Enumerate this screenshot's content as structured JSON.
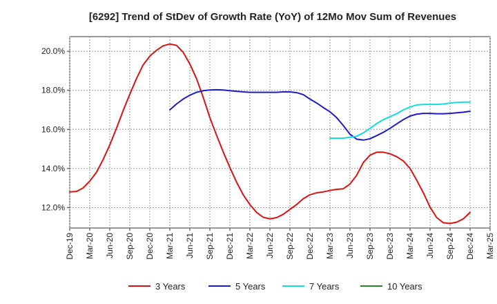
{
  "chart_data": {
    "type": "line",
    "title": "[6292]  Trend of StDev of Growth Rate (YoY) of 12Mo Mov Sum of Revenues",
    "xlabel": "",
    "ylabel": "",
    "x_ticks": [
      "Dec-19",
      "Mar-20",
      "Jun-20",
      "Sep-20",
      "Dec-20",
      "Mar-21",
      "Jun-21",
      "Sep-21",
      "Dec-21",
      "Mar-22",
      "Jun-22",
      "Sep-22",
      "Dec-22",
      "Mar-23",
      "Jun-23",
      "Sep-23",
      "Dec-23",
      "Mar-24",
      "Jun-24",
      "Sep-24",
      "Dec-24",
      "Mar-25"
    ],
    "y_ticks": [
      "12.0%",
      "14.0%",
      "16.0%",
      "18.0%",
      "20.0%"
    ],
    "y_tick_values": [
      12,
      14,
      16,
      18,
      20
    ],
    "ylim": [
      10.95,
      20.75
    ],
    "x_range_months": [
      0,
      63
    ],
    "grid": true,
    "legend_position": "bottom",
    "series": [
      {
        "name": "3 Years",
        "color": "#dd1111",
        "x": [
          0,
          1,
          2,
          3,
          4,
          5,
          6,
          7,
          8,
          9,
          10,
          11,
          12,
          13,
          14,
          15,
          16,
          17,
          18,
          19,
          20,
          21,
          22,
          23,
          24,
          25,
          26,
          27,
          28,
          29,
          30,
          31,
          32,
          33,
          34,
          35,
          36,
          37,
          38,
          39,
          40,
          41,
          42,
          43,
          44,
          45,
          46,
          47,
          48,
          49,
          50,
          51,
          52,
          53,
          54,
          55,
          56,
          57,
          58,
          59,
          60
        ],
        "values": [
          12.8,
          12.82,
          13.0,
          13.35,
          13.8,
          14.45,
          15.2,
          16.05,
          16.95,
          17.8,
          18.6,
          19.3,
          19.75,
          20.05,
          20.28,
          20.37,
          20.3,
          19.95,
          19.35,
          18.6,
          17.65,
          16.6,
          15.7,
          14.85,
          14.05,
          13.3,
          12.65,
          12.15,
          11.75,
          11.5,
          11.42,
          11.48,
          11.65,
          11.9,
          12.15,
          12.45,
          12.65,
          12.75,
          12.8,
          12.87,
          12.93,
          12.96,
          13.2,
          13.65,
          14.3,
          14.68,
          14.83,
          14.83,
          14.75,
          14.6,
          14.38,
          14.0,
          13.4,
          12.75,
          12.02,
          11.48,
          11.22,
          11.18,
          11.25,
          11.42,
          11.75
        ]
      },
      {
        "name": "5 Years",
        "color": "#1a1acc",
        "x": [
          15,
          16,
          17,
          18,
          19,
          20,
          21,
          22,
          23,
          24,
          25,
          26,
          27,
          28,
          29,
          30,
          31,
          32,
          33,
          34,
          35,
          36,
          37,
          38,
          39,
          40,
          41,
          42,
          43,
          44,
          45,
          46,
          47,
          48,
          49,
          50,
          51,
          52,
          53,
          54,
          55,
          56,
          57,
          58,
          59,
          60
        ],
        "values": [
          17.0,
          17.3,
          17.55,
          17.75,
          17.9,
          17.98,
          18.02,
          18.03,
          18.02,
          17.98,
          17.95,
          17.92,
          17.9,
          17.9,
          17.9,
          17.9,
          17.9,
          17.92,
          17.92,
          17.88,
          17.78,
          17.55,
          17.35,
          17.12,
          16.9,
          16.6,
          16.2,
          15.75,
          15.5,
          15.45,
          15.52,
          15.68,
          15.85,
          16.05,
          16.28,
          16.5,
          16.68,
          16.78,
          16.82,
          16.82,
          16.8,
          16.8,
          16.82,
          16.85,
          16.88,
          16.93
        ]
      },
      {
        "name": "7 Years",
        "color": "#11dddd",
        "x": [
          39,
          40,
          41,
          42,
          43,
          44,
          45,
          46,
          47,
          48,
          49,
          50,
          51,
          52,
          53,
          54,
          55,
          56,
          57,
          58,
          59,
          60
        ],
        "values": [
          15.55,
          15.55,
          15.55,
          15.6,
          15.65,
          15.82,
          16.05,
          16.3,
          16.5,
          16.65,
          16.8,
          17.0,
          17.15,
          17.25,
          17.28,
          17.28,
          17.28,
          17.3,
          17.35,
          17.38,
          17.4,
          17.4
        ]
      },
      {
        "name": "10 Years",
        "color": "#228822",
        "x": [],
        "values": []
      }
    ]
  }
}
